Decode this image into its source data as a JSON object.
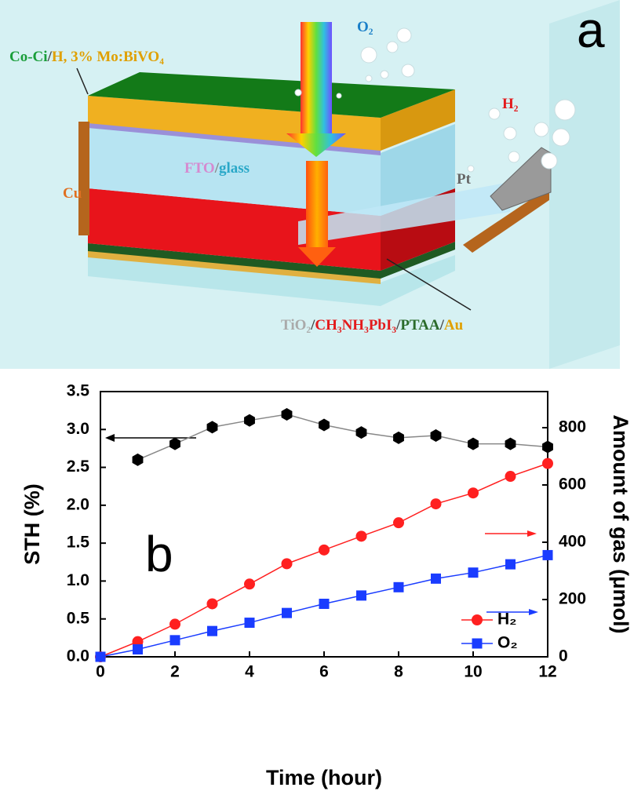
{
  "diagram": {
    "panel_label": "a",
    "labels": [
      {
        "parts": [
          {
            "text": "Co-Ci",
            "color": "#1a9e3a"
          },
          {
            "text": "/",
            "color": "#444444"
          },
          {
            "text": "H, 3% Mo:BiVO₄",
            "color": "#e0a000"
          }
        ]
      },
      {
        "parts": [
          {
            "text": "O₂",
            "color": "#1a7fc8"
          }
        ]
      },
      {
        "parts": [
          {
            "text": "H₂",
            "color": "#e31a1c"
          }
        ]
      },
      {
        "parts": [
          {
            "text": "FTO",
            "color": "#d58ad0"
          },
          {
            "text": "/",
            "color": "#888888"
          },
          {
            "text": "glass",
            "color": "#2aa8c8"
          }
        ]
      },
      {
        "parts": [
          {
            "text": "Pt",
            "color": "#666666"
          }
        ]
      },
      {
        "parts": [
          {
            "text": "Cu",
            "color": "#e07020"
          }
        ]
      },
      {
        "parts": [
          {
            "text": "TiO₂",
            "color": "#aaaaaa"
          },
          {
            "text": "/",
            "color": "#444444"
          },
          {
            "text": "CH₃NH₃PbI₃",
            "color": "#e31a1c"
          },
          {
            "text": "/",
            "color": "#444444"
          },
          {
            "text": "PTAA",
            "color": "#2b6b2b"
          },
          {
            "text": "/",
            "color": "#444444"
          },
          {
            "text": "Au",
            "color": "#e0a000"
          }
        ]
      }
    ]
  },
  "chart_data": {
    "type": "line",
    "panel_label": "b",
    "x_label": "Time (hour)",
    "y_label": "STH (%)",
    "y2_label": "Amount of gas (μmol)",
    "xlim": [
      0,
      12
    ],
    "xticks": [
      0,
      2,
      4,
      6,
      8,
      10,
      12
    ],
    "ylim": [
      0,
      3.5
    ],
    "yticks": [
      {
        "value": 0,
        "label": "0.0"
      },
      0.5,
      {
        "value": 1,
        "label": "1.0"
      },
      1.5,
      {
        "value": 2,
        "label": "2.0"
      },
      2.5,
      {
        "value": 3,
        "label": "3.0"
      },
      3.5
    ],
    "y2lim": [
      0,
      926
    ],
    "y2ticks": [
      0,
      200,
      400,
      600,
      800
    ],
    "legend": "lower right",
    "series": [
      {
        "name": null,
        "color": "#000000",
        "line_color": "#888888",
        "marker": "hexagon",
        "axis": "y",
        "x": [
          1,
          2,
          3,
          4,
          5,
          6,
          7,
          8,
          9,
          10,
          11,
          12
        ],
        "values": [
          2.6,
          2.81,
          3.03,
          3.12,
          3.2,
          3.06,
          2.96,
          2.89,
          2.92,
          2.81,
          2.81,
          2.77
        ]
      },
      {
        "name": "H₂",
        "color": "#ff2020",
        "line_color": "#ff2020",
        "marker": "circle",
        "axis": "y2",
        "x": [
          0,
          1,
          2,
          3,
          4,
          5,
          6,
          7,
          8,
          9,
          10,
          11,
          12
        ],
        "values": [
          0,
          53,
          114,
          185,
          254,
          325,
          373,
          421,
          468,
          534,
          572,
          630,
          675
        ]
      },
      {
        "name": "O₂",
        "color": "#1a3cff",
        "line_color": "#1a3cff",
        "marker": "square",
        "axis": "y2",
        "x": [
          0,
          1,
          2,
          3,
          4,
          5,
          6,
          7,
          8,
          9,
          10,
          11,
          12
        ],
        "values": [
          0,
          26,
          58,
          90,
          119,
          153,
          185,
          214,
          243,
          273,
          294,
          323,
          355
        ]
      }
    ]
  }
}
